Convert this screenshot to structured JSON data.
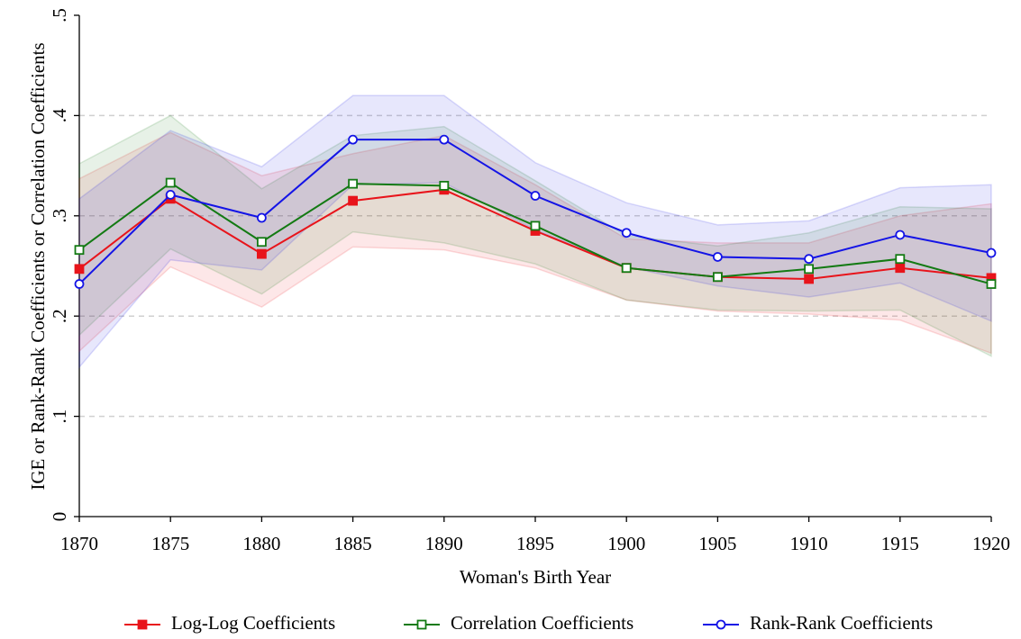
{
  "chart_data": {
    "type": "line",
    "x_label": "Woman's Birth Year",
    "y_label": "IGE or Rank-Rank Coefficients or Correlation Coefficients",
    "x": [
      1870,
      1875,
      1880,
      1885,
      1890,
      1895,
      1900,
      1905,
      1910,
      1915,
      1920
    ],
    "xlim": [
      1870,
      1920
    ],
    "xticks": [
      1870,
      1875,
      1880,
      1885,
      1890,
      1895,
      1900,
      1905,
      1910,
      1915,
      1920
    ],
    "ylim": [
      0,
      0.5
    ],
    "yticks": [
      0,
      {
        "value": 0.1,
        "label": ".1"
      },
      {
        "value": 0.2,
        "label": ".2"
      },
      {
        "value": 0.3,
        "label": ".3"
      },
      {
        "value": 0.4,
        "label": ".4"
      },
      {
        "value": 0.5,
        "label": ".5"
      }
    ],
    "grid": true,
    "legend": "bottom",
    "series": [
      {
        "name": "Log-Log Coefficients",
        "color": "#e8141b",
        "marker": "square-filled",
        "values": [
          0.247,
          0.317,
          0.262,
          0.315,
          0.326,
          0.285,
          0.248,
          0.239,
          0.237,
          0.248,
          0.238
        ],
        "upper": [
          0.337,
          0.383,
          0.34,
          0.362,
          0.38,
          0.331,
          0.277,
          0.273,
          0.273,
          0.3,
          0.312
        ],
        "lower": [
          0.165,
          0.249,
          0.209,
          0.269,
          0.266,
          0.248,
          0.216,
          0.205,
          0.202,
          0.196,
          0.163
        ]
      },
      {
        "name": "Correlation Coefficients",
        "color": "#137a13",
        "marker": "square-open",
        "values": [
          0.266,
          0.333,
          0.274,
          0.332,
          0.33,
          0.29,
          0.248,
          0.239,
          0.247,
          0.257,
          0.232
        ],
        "upper": [
          0.352,
          0.4,
          0.327,
          0.38,
          0.389,
          0.335,
          0.28,
          0.27,
          0.283,
          0.309,
          0.307
        ],
        "lower": [
          0.181,
          0.267,
          0.222,
          0.284,
          0.273,
          0.252,
          0.216,
          0.206,
          0.205,
          0.206,
          0.16
        ]
      },
      {
        "name": "Rank-Rank Coefficients",
        "color": "#1414e6",
        "marker": "circle-open",
        "values": [
          0.232,
          0.321,
          0.298,
          0.376,
          0.376,
          0.32,
          0.283,
          0.259,
          0.257,
          0.281,
          0.263
        ],
        "upper": [
          0.317,
          0.385,
          0.349,
          0.42,
          0.42,
          0.353,
          0.313,
          0.291,
          0.295,
          0.328,
          0.331
        ],
        "lower": [
          0.149,
          0.256,
          0.246,
          0.331,
          0.333,
          0.286,
          0.249,
          0.23,
          0.219,
          0.233,
          0.195
        ]
      }
    ]
  }
}
